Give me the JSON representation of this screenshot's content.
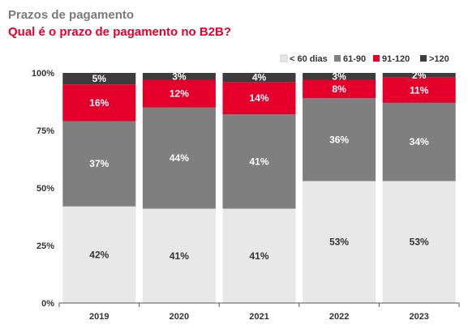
{
  "chart_data": {
    "type": "bar",
    "stacked": true,
    "title": "Prazos de pagamento",
    "subtitle": "Qual é o prazo de pagamento no B2B?",
    "categories": [
      "2019",
      "2020",
      "2021",
      "2022",
      "2023"
    ],
    "series": [
      {
        "name": "< 60 dias",
        "color": "#e8e8e8",
        "label_color": "#333333",
        "values": [
          42,
          41,
          41,
          53,
          53
        ],
        "labels": [
          "42%",
          "41%",
          "41%",
          "53%",
          "53%"
        ]
      },
      {
        "name": "61-90",
        "color": "#7f7f7f",
        "label_color": "#ffffff",
        "values": [
          37,
          44,
          41,
          36,
          34
        ],
        "labels": [
          "37%",
          "44%",
          "41%",
          "36%",
          "34%"
        ]
      },
      {
        "name": "91-120",
        "color": "#e4002b",
        "label_color": "#ffffff",
        "values": [
          16,
          12,
          14,
          8,
          11
        ],
        "labels": [
          "16%",
          "12%",
          "14%",
          "8%",
          "11%"
        ]
      },
      {
        "name": ">120",
        "color": "#3c3c3c",
        "label_color": "#ffffff",
        "values": [
          5,
          3,
          4,
          3,
          2
        ],
        "labels": [
          "5%",
          "3%",
          "4%",
          "3%",
          "2%"
        ]
      }
    ],
    "yticks": [
      "0%",
      "25%",
      "50%",
      "75%",
      "100%"
    ],
    "ylim": [
      0,
      100
    ],
    "grid": false,
    "legend": "top-right"
  }
}
